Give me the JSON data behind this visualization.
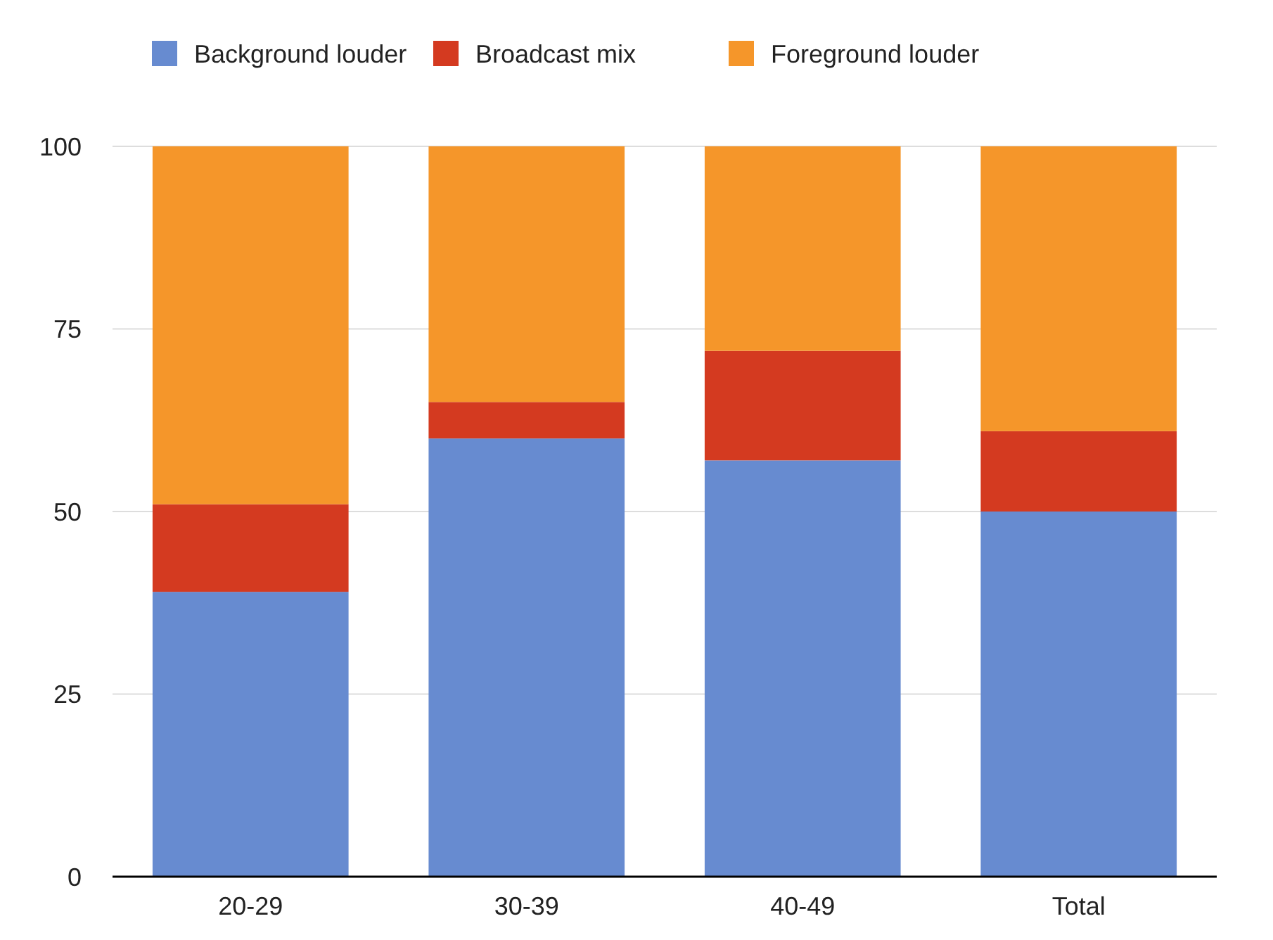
{
  "chart_data": {
    "type": "bar",
    "stacked": true,
    "categories": [
      "20-29",
      "30-39",
      "40-49",
      "Total"
    ],
    "series": [
      {
        "name": "Background louder",
        "color": "#678bd0",
        "values": [
          39,
          60,
          57,
          50
        ]
      },
      {
        "name": "Broadcast mix",
        "color": "#d43a20",
        "values": [
          12,
          5,
          15,
          11
        ]
      },
      {
        "name": "Foreground louder",
        "color": "#f5962a",
        "values": [
          49,
          35,
          28,
          39
        ]
      }
    ],
    "ylim": [
      0,
      100
    ],
    "yticks": [
      0,
      25,
      50,
      75,
      100
    ],
    "grid": "y",
    "legend": "top"
  }
}
